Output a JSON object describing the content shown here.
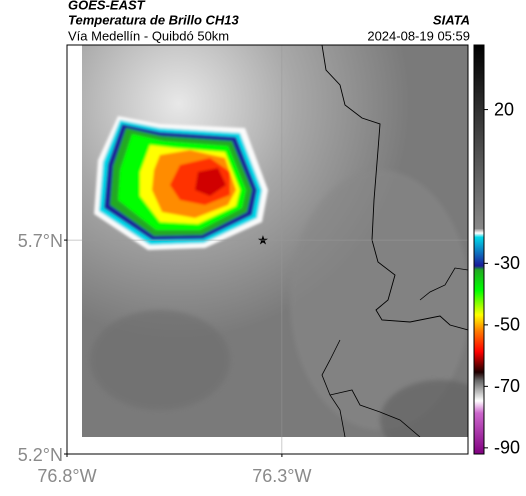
{
  "header": {
    "title": "GOES-EAST",
    "subtitle": "Temperatura de Brillo CH13",
    "location": "Vía Medellín - Quibdó 50km",
    "source": "SIATA",
    "datetime": "2024-08-19 05:59"
  },
  "map": {
    "xlim": [
      -76.8,
      -75.867
    ],
    "ylim": [
      5.2,
      6.156
    ],
    "xticks": [
      {
        "value": -76.8,
        "label": "76.8°W"
      },
      {
        "value": -76.3,
        "label": "76.3°W"
      }
    ],
    "yticks": [
      {
        "value": 5.2,
        "label": "5.2°N"
      },
      {
        "value": 5.7,
        "label": "5.7°N"
      }
    ],
    "grid": true
  },
  "colorbar": {
    "lim": [
      -92,
      41
    ],
    "ticks": [
      20,
      -30,
      -50,
      -70,
      -90
    ]
  }
}
